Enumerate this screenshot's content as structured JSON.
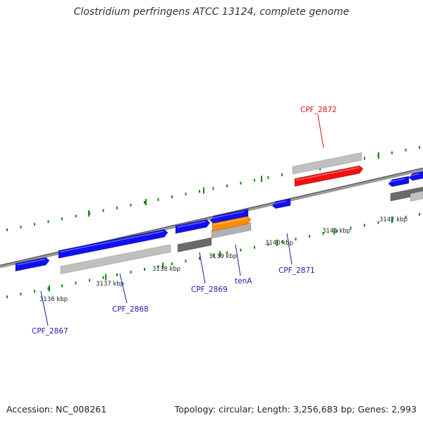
{
  "title": "Clostridium perfringens ATCC 13124, complete genome",
  "footer": {
    "accession": "Accession: NC_008261",
    "summary": "Topology: circular; Length: 3,256,683 bp; Genes: 2,993"
  },
  "colors": {
    "cds_forward": "#1010ee",
    "cds_highlight": "#ee1111",
    "rna_gene": "#ff8c00",
    "gene_span": "#c0c0c0",
    "gene_span_dark": "#6a6a6a",
    "backbone": "#808080",
    "ticks": "#138a13",
    "label_default": "#1a1aa8",
    "label_highlight": "#dd1111"
  },
  "scale": {
    "ticks": [
      {
        "label": "3136 kbp"
      },
      {
        "label": "3137 kbp"
      },
      {
        "label": "3138 kbp"
      },
      {
        "label": "3139 kbp"
      },
      {
        "label": "3140 kbp"
      },
      {
        "label": "3141 kbp"
      },
      {
        "label": "3142 kbp"
      }
    ]
  },
  "genes": [
    {
      "name": "CPF_2867"
    },
    {
      "name": "CPF_2868"
    },
    {
      "name": "CPF_2869"
    },
    {
      "name": "tenA"
    },
    {
      "name": "CPF_2871"
    },
    {
      "name": "CPF_2872"
    }
  ]
}
